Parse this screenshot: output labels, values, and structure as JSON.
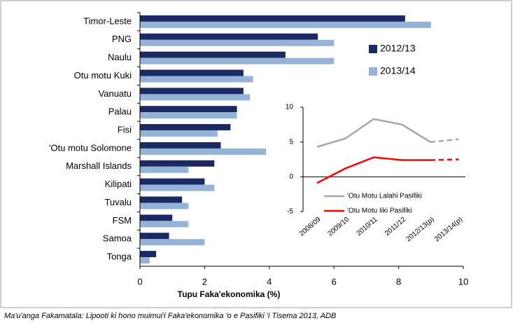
{
  "source": "Ma'u'anga Fakamatala: Lipooti ki hono muimui'i Faka'ekonomika 'o e Pasifiki 'i Tisema 2013, ADB",
  "chart_data": [
    {
      "type": "hbar",
      "x_label": "Tupu Faka'ekonomika (%)",
      "categories": [
        "Timor-Leste",
        "PNG",
        "Naulu",
        "Otu motu Kuki",
        "Vanuatu",
        "Palau",
        "Fisi",
        "'Otu motu Solomone",
        "Marshall Islands",
        "Kilipati",
        "Tuvalu",
        "FSM",
        "Samoa",
        "Tonga"
      ],
      "series": [
        {
          "name": "2012/13",
          "color": "#1b2a63",
          "values": [
            8.2,
            5.5,
            4.5,
            3.2,
            3.2,
            3.0,
            2.8,
            2.5,
            2.3,
            2.0,
            1.3,
            1.0,
            0.9,
            0.5
          ]
        },
        {
          "name": "2013/14",
          "color": "#95b3d7",
          "values": [
            9.0,
            6.0,
            6.0,
            3.5,
            3.4,
            3.0,
            2.4,
            4.0,
            1.5,
            2.3,
            1.5,
            1.5,
            2.0,
            0.3
          ]
        }
      ],
      "xlim": [
        0,
        10
      ],
      "xticks": [
        0,
        2,
        4,
        6,
        8,
        10
      ]
    },
    {
      "type": "line",
      "categories": [
        "2008/09",
        "2009/10",
        "2010/11",
        "2011/12",
        "2012/13(p)",
        "2013/14(p)"
      ],
      "series": [
        {
          "name": "'Otu Motu Lalahi Pasifiki",
          "color": "#a6a6a6",
          "values": [
            4.3,
            5.5,
            8.3,
            7.5,
            5.0,
            5.4
          ]
        },
        {
          "name": "'Otu Motu Iiki Pasifiki",
          "color": "#ff0000",
          "values": [
            -0.9,
            1.2,
            2.8,
            2.4,
            2.4,
            2.5
          ]
        }
      ],
      "dash_from_index": 4,
      "ylim": [
        -5,
        10
      ],
      "yticks": [
        -5,
        0,
        5,
        10
      ]
    }
  ]
}
